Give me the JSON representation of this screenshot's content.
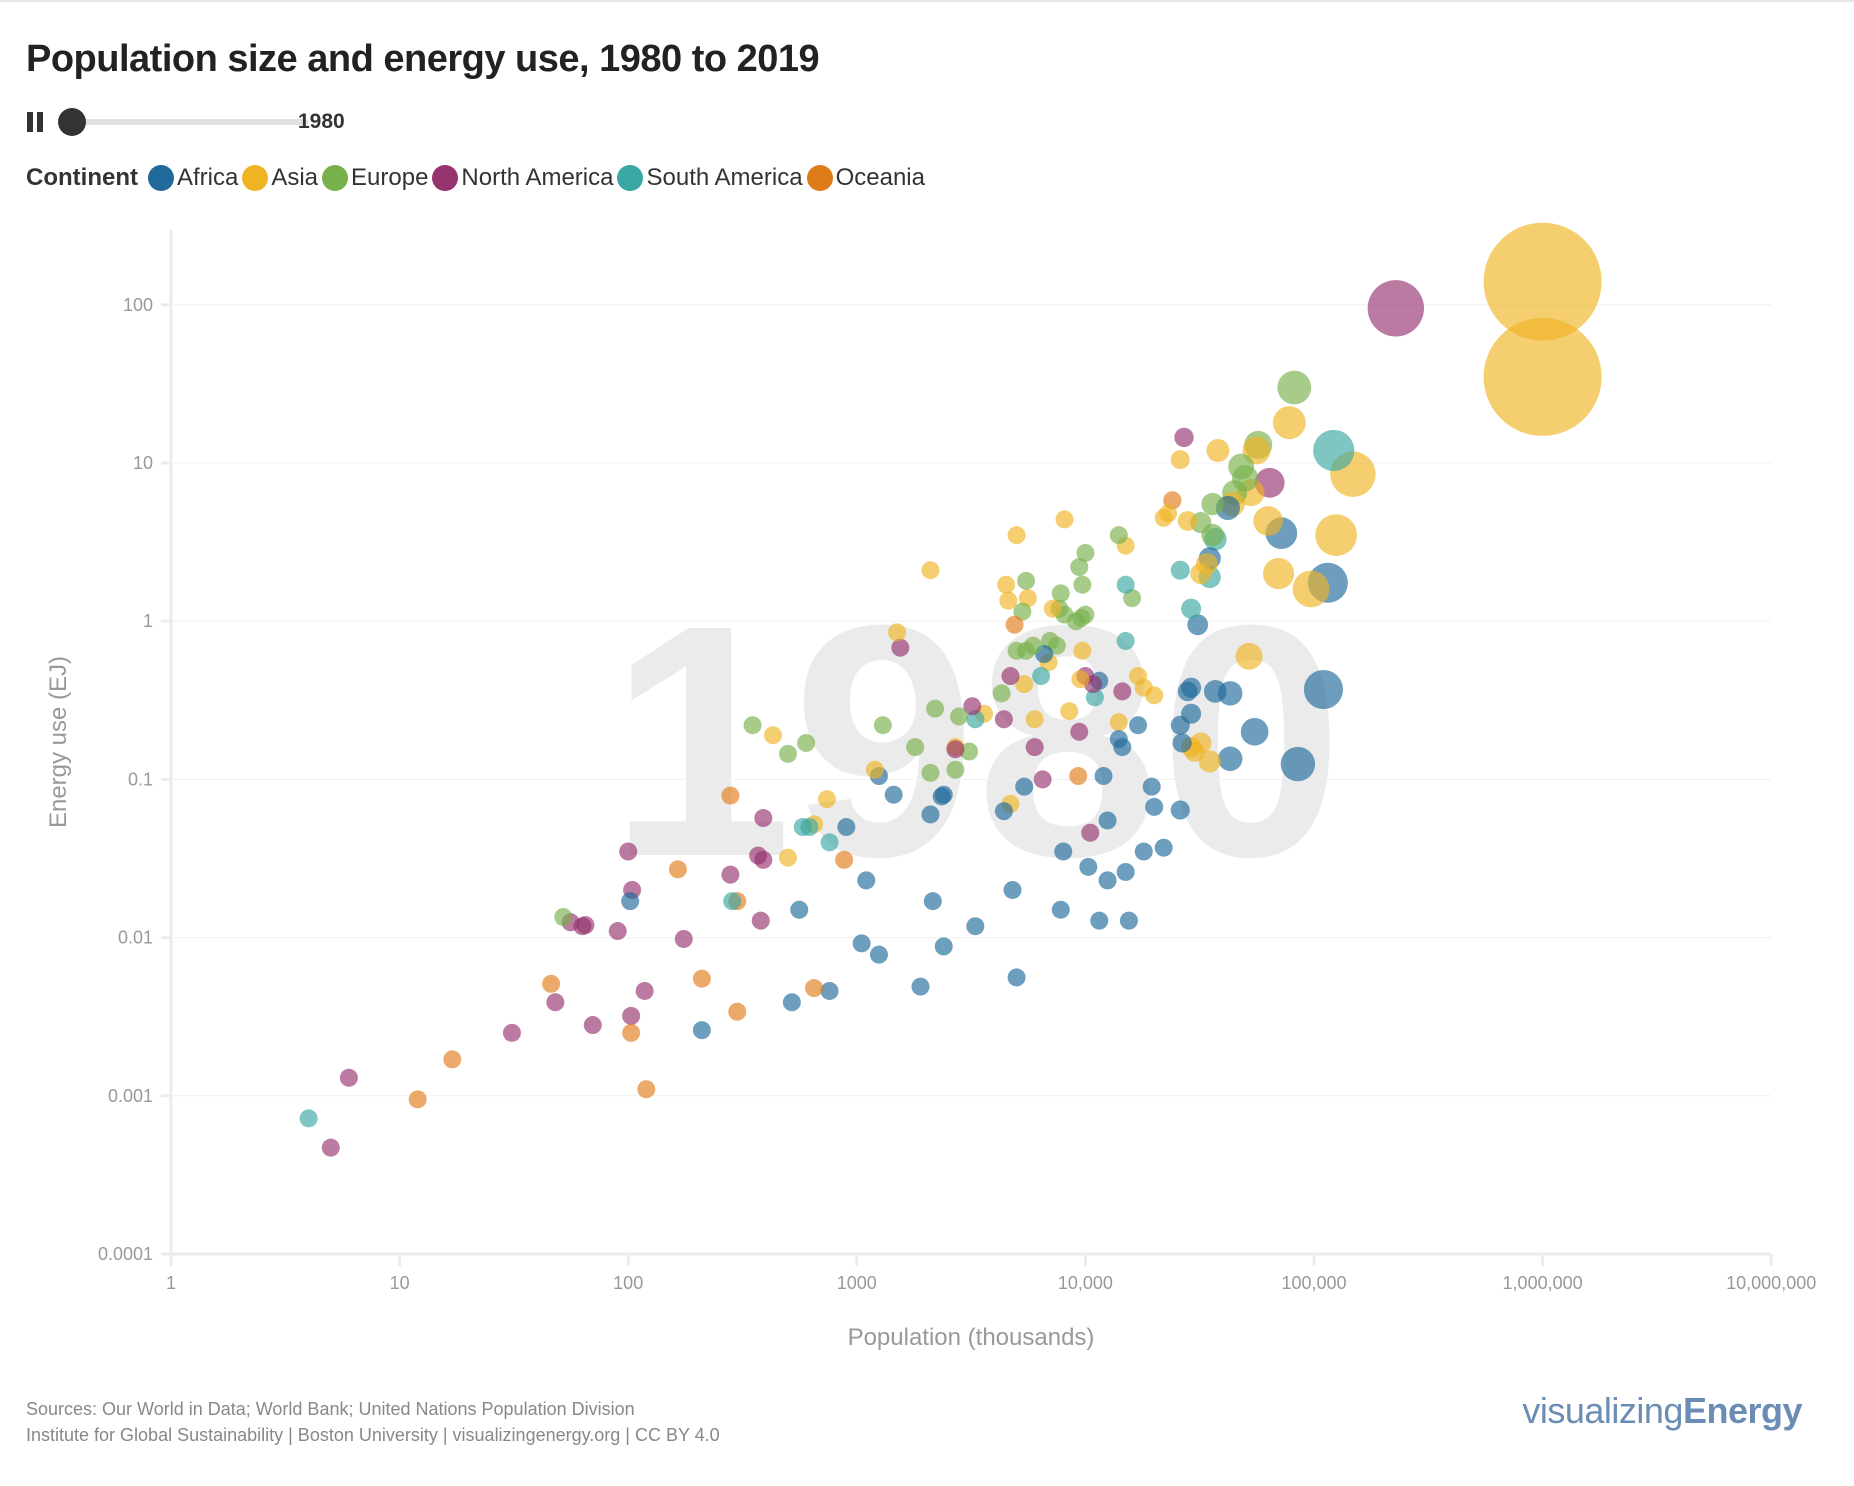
{
  "title": "Population size and energy use, 1980 to 2019",
  "controls": {
    "pause_icon": "pause-icon",
    "year": "1980",
    "slider_min": 1980,
    "slider_max": 2019,
    "slider_value": 1980
  },
  "legend": {
    "title": "Continent",
    "items": [
      {
        "label": "Africa",
        "color": "#1f6a9a"
      },
      {
        "label": "Asia",
        "color": "#f0b323"
      },
      {
        "label": "Europe",
        "color": "#78b14b"
      },
      {
        "label": "North America",
        "color": "#95336f"
      },
      {
        "label": "South America",
        "color": "#3aa7a3"
      },
      {
        "label": "Oceania",
        "color": "#e07b1a"
      }
    ]
  },
  "footer": {
    "line1": "Sources: Our World in Data; World Bank; United Nations Population Division",
    "line2": "Institute for Global Sustainability | Boston University | visualizingenergy.org | CC BY 4.0",
    "brand_light": "visualizing",
    "brand_bold": "Energy"
  },
  "chart_data": {
    "type": "scatter",
    "title": "Population size and energy use, 1980 to 2019",
    "watermark": "1980",
    "xlabel": "Population (thousands)",
    "ylabel": "Energy use (EJ)",
    "xscale": "log",
    "yscale": "log",
    "xlim": [
      1,
      10000000
    ],
    "ylim": [
      0.0001,
      300
    ],
    "xticks": [
      1,
      10,
      100,
      1000,
      10000,
      100000,
      1000000,
      10000000
    ],
    "xtick_labels": [
      "1",
      "10",
      "100",
      "1000",
      "10,000",
      "100,000",
      "1,000,000",
      "10,000,000"
    ],
    "yticks": [
      0.0001,
      0.001,
      0.01,
      0.1,
      1,
      10,
      100
    ],
    "ytick_labels": [
      "0.0001",
      "0.001",
      "0.01",
      "0.1",
      "1",
      "10",
      "100"
    ],
    "grid": "horizontal",
    "legend_position": "top-left",
    "size_encoding": "population",
    "series_order": [
      "Africa",
      "Asia",
      "Europe",
      "North America",
      "South America",
      "Oceania"
    ],
    "points": [
      [
        1000000,
        140,
        "Asia"
      ],
      [
        1000000,
        35,
        "Asia"
      ],
      [
        228000,
        95,
        "North America"
      ],
      [
        82000,
        30,
        "Europe"
      ],
      [
        78000,
        18,
        "Asia"
      ],
      [
        122000,
        12,
        "South America"
      ],
      [
        148000,
        8.5,
        "Asia"
      ],
      [
        64000,
        7.5,
        "North America"
      ],
      [
        57000,
        13,
        "Europe"
      ],
      [
        56000,
        12,
        "Asia"
      ],
      [
        38000,
        12,
        "Asia"
      ],
      [
        26000,
        10.5,
        "Asia"
      ],
      [
        27000,
        14.5,
        "North America"
      ],
      [
        48000,
        9.5,
        "Europe"
      ],
      [
        53000,
        6.5,
        "Asia"
      ],
      [
        50000,
        8,
        "Europe"
      ],
      [
        45000,
        6.5,
        "Europe"
      ],
      [
        44000,
        5.5,
        "Asia"
      ],
      [
        36000,
        5.5,
        "Europe"
      ],
      [
        32000,
        4.2,
        "Europe"
      ],
      [
        36000,
        3.5,
        "Europe"
      ],
      [
        37000,
        3.3,
        "South America"
      ],
      [
        42000,
        5.2,
        "Africa"
      ],
      [
        28000,
        4.3,
        "Asia"
      ],
      [
        23000,
        4.8,
        "Asia"
      ],
      [
        24000,
        5.8,
        "Oceania"
      ],
      [
        63000,
        4.3,
        "Asia"
      ],
      [
        72000,
        3.6,
        "Africa"
      ],
      [
        125000,
        3.5,
        "Asia"
      ],
      [
        70000,
        2.0,
        "Asia"
      ],
      [
        115000,
        1.75,
        "Africa"
      ],
      [
        97000,
        1.6,
        "Asia"
      ],
      [
        35000,
        1.9,
        "South America"
      ],
      [
        32000,
        2.0,
        "Asia"
      ],
      [
        34000,
        2.3,
        "Asia"
      ],
      [
        35000,
        2.5,
        "Africa"
      ],
      [
        26000,
        2.1,
        "South America"
      ],
      [
        10000,
        2.7,
        "Europe"
      ],
      [
        9400,
        2.2,
        "Europe"
      ],
      [
        8100,
        4.4,
        "Asia"
      ],
      [
        14000,
        3.5,
        "Europe"
      ],
      [
        15000,
        3.0,
        "Asia"
      ],
      [
        5000,
        3.5,
        "Asia"
      ],
      [
        2100,
        2.1,
        "Asia"
      ],
      [
        22000,
        4.5,
        "Asia"
      ],
      [
        15000,
        1.7,
        "South America"
      ],
      [
        16000,
        1.4,
        "Europe"
      ],
      [
        9700,
        1.7,
        "Europe"
      ],
      [
        7800,
        1.5,
        "Europe"
      ],
      [
        4500,
        1.7,
        "Asia"
      ],
      [
        4600,
        1.35,
        "Asia"
      ],
      [
        5500,
        1.8,
        "Europe"
      ],
      [
        5600,
        1.4,
        "Asia"
      ],
      [
        7200,
        1.2,
        "Asia"
      ],
      [
        5300,
        1.15,
        "Europe"
      ],
      [
        7700,
        1.2,
        "Europe"
      ],
      [
        8100,
        1.1,
        "Europe"
      ],
      [
        9100,
        1.0,
        "Europe"
      ],
      [
        9600,
        1.05,
        "Europe"
      ],
      [
        10000,
        1.1,
        "Europe"
      ],
      [
        29000,
        1.2,
        "South America"
      ],
      [
        31000,
        0.95,
        "Africa"
      ],
      [
        4900,
        0.95,
        "Oceania"
      ],
      [
        5000,
        0.65,
        "Europe"
      ],
      [
        5500,
        0.65,
        "Europe"
      ],
      [
        5900,
        0.7,
        "Europe"
      ],
      [
        7000,
        0.75,
        "Europe"
      ],
      [
        7500,
        0.7,
        "Europe"
      ],
      [
        6600,
        0.62,
        "Africa"
      ],
      [
        9700,
        0.65,
        "Asia"
      ],
      [
        6900,
        0.55,
        "Asia"
      ],
      [
        1500,
        0.85,
        "Asia"
      ],
      [
        1550,
        0.68,
        "North America"
      ],
      [
        15000,
        0.75,
        "South America"
      ],
      [
        52000,
        0.6,
        "Asia"
      ],
      [
        9500,
        0.43,
        "Asia"
      ],
      [
        10000,
        0.45,
        "North America"
      ],
      [
        11500,
        0.42,
        "Africa"
      ],
      [
        6400,
        0.45,
        "South America"
      ],
      [
        4700,
        0.45,
        "North America"
      ],
      [
        5400,
        0.4,
        "Asia"
      ],
      [
        4300,
        0.35,
        "Europe"
      ],
      [
        10800,
        0.4,
        "North America"
      ],
      [
        11000,
        0.33,
        "South America"
      ],
      [
        14500,
        0.36,
        "North America"
      ],
      [
        17000,
        0.45,
        "Asia"
      ],
      [
        18000,
        0.38,
        "Asia"
      ],
      [
        20000,
        0.34,
        "Asia"
      ],
      [
        28000,
        0.36,
        "Africa"
      ],
      [
        29000,
        0.38,
        "Africa"
      ],
      [
        37000,
        0.36,
        "Africa"
      ],
      [
        43000,
        0.35,
        "Africa"
      ],
      [
        110000,
        0.37,
        "Africa"
      ],
      [
        3200,
        0.29,
        "North America"
      ],
      [
        3600,
        0.26,
        "Asia"
      ],
      [
        2800,
        0.25,
        "Europe"
      ],
      [
        2200,
        0.28,
        "Europe"
      ],
      [
        6000,
        0.24,
        "Asia"
      ],
      [
        8500,
        0.27,
        "Asia"
      ],
      [
        14000,
        0.23,
        "Asia"
      ],
      [
        17000,
        0.22,
        "Africa"
      ],
      [
        4400,
        0.24,
        "North America"
      ],
      [
        9400,
        0.2,
        "North America"
      ],
      [
        3300,
        0.24,
        "South America"
      ],
      [
        26000,
        0.22,
        "Africa"
      ],
      [
        26500,
        0.17,
        "Africa"
      ],
      [
        29000,
        0.26,
        "Africa"
      ],
      [
        55000,
        0.2,
        "Africa"
      ],
      [
        14000,
        0.18,
        "Africa"
      ],
      [
        14500,
        0.16,
        "Africa"
      ],
      [
        6000,
        0.16,
        "North America"
      ],
      [
        2700,
        0.16,
        "Asia"
      ],
      [
        2700,
        0.155,
        "North America"
      ],
      [
        3100,
        0.15,
        "Europe"
      ],
      [
        1800,
        0.16,
        "Europe"
      ],
      [
        1300,
        0.22,
        "Europe"
      ],
      [
        350,
        0.22,
        "Europe"
      ],
      [
        430,
        0.19,
        "Asia"
      ],
      [
        600,
        0.17,
        "Europe"
      ],
      [
        500,
        0.145,
        "Europe"
      ],
      [
        29000,
        0.16,
        "Asia"
      ],
      [
        32000,
        0.17,
        "Asia"
      ],
      [
        30000,
        0.15,
        "Asia"
      ],
      [
        35000,
        0.13,
        "Asia"
      ],
      [
        43000,
        0.135,
        "Africa"
      ],
      [
        85000,
        0.125,
        "Africa"
      ],
      [
        2100,
        0.11,
        "Europe"
      ],
      [
        2700,
        0.115,
        "Europe"
      ],
      [
        1200,
        0.115,
        "Asia"
      ],
      [
        1250,
        0.105,
        "Africa"
      ],
      [
        9300,
        0.105,
        "Oceania"
      ],
      [
        12000,
        0.105,
        "Africa"
      ],
      [
        6500,
        0.1,
        "North America"
      ],
      [
        5400,
        0.09,
        "Africa"
      ],
      [
        19500,
        0.09,
        "Africa"
      ],
      [
        1450,
        0.08,
        "Africa"
      ],
      [
        2400,
        0.08,
        "Africa"
      ],
      [
        2350,
        0.078,
        "Africa"
      ],
      [
        740,
        0.075,
        "Asia"
      ],
      [
        280,
        0.079,
        "Oceania"
      ],
      [
        4700,
        0.07,
        "Asia"
      ],
      [
        20000,
        0.067,
        "Africa"
      ],
      [
        26000,
        0.064,
        "Africa"
      ],
      [
        2100,
        0.06,
        "Africa"
      ],
      [
        4400,
        0.063,
        "Africa"
      ],
      [
        390,
        0.057,
        "North America"
      ],
      [
        12500,
        0.055,
        "Africa"
      ],
      [
        650,
        0.052,
        "Asia"
      ],
      [
        580,
        0.05,
        "South America"
      ],
      [
        620,
        0.05,
        "South America"
      ],
      [
        900,
        0.05,
        "Africa"
      ],
      [
        10500,
        0.046,
        "North America"
      ],
      [
        760,
        0.04,
        "South America"
      ],
      [
        8000,
        0.035,
        "Africa"
      ],
      [
        18000,
        0.035,
        "Africa"
      ],
      [
        22000,
        0.037,
        "Africa"
      ],
      [
        100,
        0.035,
        "North America"
      ],
      [
        370,
        0.033,
        "North America"
      ],
      [
        390,
        0.031,
        "North America"
      ],
      [
        500,
        0.032,
        "Asia"
      ],
      [
        880,
        0.031,
        "Oceania"
      ],
      [
        10300,
        0.028,
        "Africa"
      ],
      [
        165,
        0.027,
        "Oceania"
      ],
      [
        280,
        0.025,
        "North America"
      ],
      [
        15000,
        0.026,
        "Africa"
      ],
      [
        12500,
        0.023,
        "Africa"
      ],
      [
        1100,
        0.023,
        "Africa"
      ],
      [
        104,
        0.02,
        "North America"
      ],
      [
        4800,
        0.02,
        "Africa"
      ],
      [
        2150,
        0.017,
        "Africa"
      ],
      [
        102,
        0.017,
        "Africa"
      ],
      [
        285,
        0.017,
        "South America"
      ],
      [
        300,
        0.017,
        "Oceania"
      ],
      [
        560,
        0.015,
        "Africa"
      ],
      [
        7800,
        0.015,
        "Africa"
      ],
      [
        52,
        0.0135,
        "Europe"
      ],
      [
        56,
        0.0125,
        "North America"
      ],
      [
        63,
        0.0118,
        "North America"
      ],
      [
        65,
        0.012,
        "North America"
      ],
      [
        380,
        0.0128,
        "North America"
      ],
      [
        11500,
        0.0128,
        "Africa"
      ],
      [
        15500,
        0.0128,
        "Africa"
      ],
      [
        3300,
        0.0118,
        "Africa"
      ],
      [
        90,
        0.011,
        "North America"
      ],
      [
        175,
        0.0098,
        "North America"
      ],
      [
        1050,
        0.0092,
        "Africa"
      ],
      [
        2400,
        0.0088,
        "Africa"
      ],
      [
        1250,
        0.0078,
        "Africa"
      ],
      [
        5000,
        0.0056,
        "Africa"
      ],
      [
        210,
        0.0055,
        "Oceania"
      ],
      [
        46,
        0.0051,
        "Oceania"
      ],
      [
        118,
        0.0046,
        "North America"
      ],
      [
        1900,
        0.0049,
        "Africa"
      ],
      [
        650,
        0.0048,
        "Oceania"
      ],
      [
        760,
        0.0046,
        "Africa"
      ],
      [
        48,
        0.0039,
        "North America"
      ],
      [
        520,
        0.0039,
        "Africa"
      ],
      [
        300,
        0.0034,
        "Oceania"
      ],
      [
        103,
        0.0032,
        "North America"
      ],
      [
        70,
        0.0028,
        "North America"
      ],
      [
        210,
        0.0026,
        "Africa"
      ],
      [
        31,
        0.0025,
        "North America"
      ],
      [
        103,
        0.0025,
        "Oceania"
      ],
      [
        17,
        0.0017,
        "Oceania"
      ],
      [
        6,
        0.0013,
        "North America"
      ],
      [
        120,
        0.0011,
        "Oceania"
      ],
      [
        12,
        0.00095,
        "Oceania"
      ],
      [
        4,
        0.00072,
        "South America"
      ],
      [
        5,
        0.00047,
        "North America"
      ]
    ]
  }
}
